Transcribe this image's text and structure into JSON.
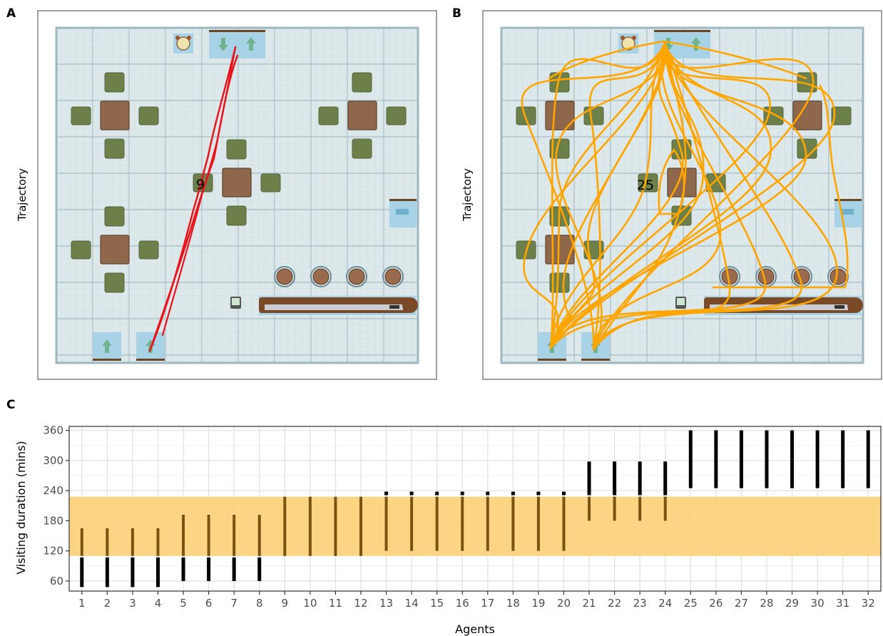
{
  "panels": {
    "a": {
      "letter": "A",
      "ylabel": "Trajectory",
      "count_label": "9",
      "path_color": "#e8141b"
    },
    "b": {
      "letter": "B",
      "ylabel": "Trajectory",
      "count_label": "25",
      "path_color": "#ffa500"
    },
    "c": {
      "letter": "C"
    }
  },
  "colors": {
    "floor": "#dce8ea",
    "grid_minor": "#c2d3d8",
    "grid_major": "#9db3ba",
    "wall": "#9db8c0",
    "table": "#8f684c",
    "chair": "#6e8049",
    "door_tile": "#a8d3e6",
    "door_edge": "#6b4422",
    "stool": "#9a6a4c",
    "counter": "#7a4a26",
    "highlight_band": "#fbd27d",
    "segment_highlight": "#7a5310",
    "segment_plain": "#000000"
  },
  "chart_data": {
    "type": "range",
    "title": "",
    "xlabel": "Agents",
    "ylabel": "Visiting duration (mins)",
    "categories": [
      "1",
      "2",
      "3",
      "4",
      "5",
      "6",
      "7",
      "8",
      "9",
      "10",
      "11",
      "12",
      "13",
      "14",
      "15",
      "16",
      "17",
      "18",
      "19",
      "20",
      "21",
      "22",
      "23",
      "24",
      "25",
      "26",
      "27",
      "28",
      "29",
      "30",
      "31",
      "32"
    ],
    "ranges": [
      [
        48,
        165
      ],
      [
        48,
        165
      ],
      [
        48,
        165
      ],
      [
        48,
        165
      ],
      [
        60,
        192
      ],
      [
        60,
        192
      ],
      [
        60,
        192
      ],
      [
        60,
        192
      ],
      [
        110,
        228
      ],
      [
        110,
        228
      ],
      [
        110,
        228
      ],
      [
        110,
        228
      ],
      [
        120,
        238
      ],
      [
        120,
        238
      ],
      [
        120,
        238
      ],
      [
        120,
        238
      ],
      [
        120,
        238
      ],
      [
        120,
        238
      ],
      [
        120,
        238
      ],
      [
        120,
        238
      ],
      [
        180,
        298
      ],
      [
        180,
        298
      ],
      [
        180,
        298
      ],
      [
        180,
        298
      ],
      [
        242,
        360
      ],
      [
        242,
        360
      ],
      [
        242,
        360
      ],
      [
        242,
        360
      ],
      [
        242,
        360
      ],
      [
        242,
        360
      ],
      [
        242,
        360
      ],
      [
        242,
        360
      ]
    ],
    "highlight_band": [
      110,
      228
    ],
    "ylim": [
      40,
      368
    ],
    "yticks": [
      60,
      120,
      180,
      240,
      300,
      360
    ],
    "grid": true,
    "legend": "none"
  }
}
